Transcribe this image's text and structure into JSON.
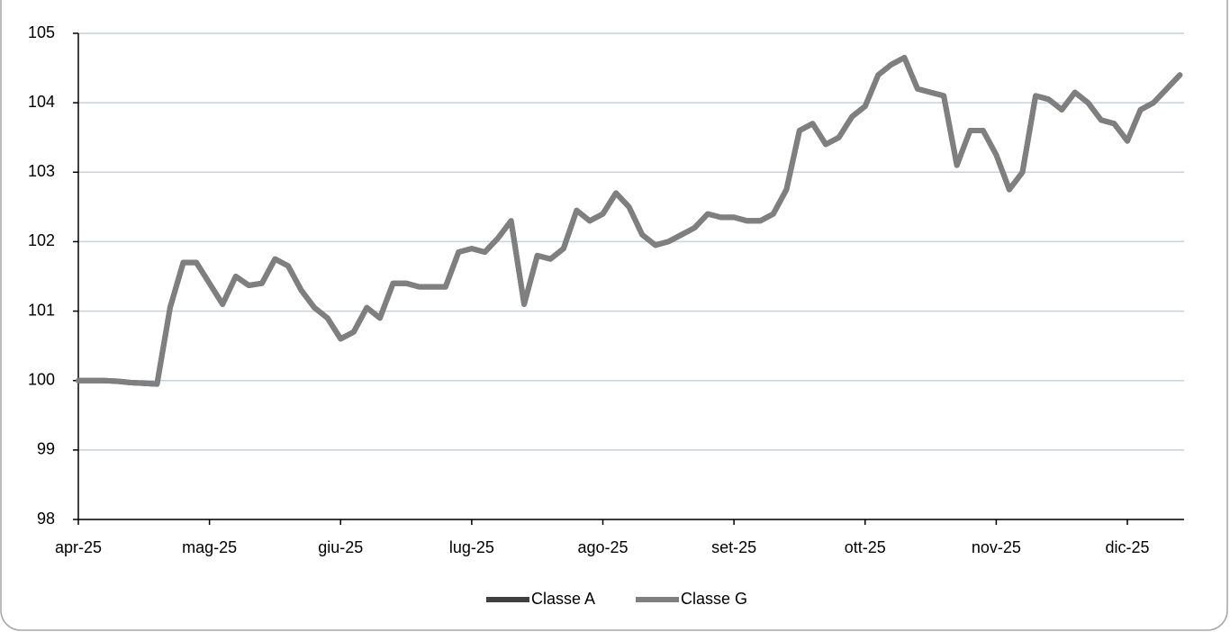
{
  "chart_data": {
    "type": "line",
    "categories": [
      "apr-25",
      null,
      null,
      null,
      null,
      null,
      null,
      null,
      null,
      null,
      "mag-25",
      null,
      null,
      null,
      null,
      null,
      null,
      null,
      null,
      null,
      "giu-25",
      null,
      null,
      null,
      null,
      null,
      null,
      null,
      null,
      null,
      "lug-25",
      null,
      null,
      null,
      null,
      null,
      null,
      null,
      null,
      null,
      "ago-25",
      null,
      null,
      null,
      null,
      null,
      null,
      null,
      null,
      null,
      "set-25",
      null,
      null,
      null,
      null,
      null,
      null,
      null,
      null,
      null,
      "ott-25",
      null,
      null,
      null,
      null,
      null,
      null,
      null,
      null,
      null,
      "nov-25",
      null,
      null,
      null,
      null,
      null,
      null,
      null,
      null,
      null,
      "dic-25",
      null,
      null,
      null,
      null
    ],
    "series": [
      {
        "name": "Classe A",
        "color": "#404040",
        "values": [
          100,
          100,
          100,
          99.99,
          99.97,
          99.96,
          99.95,
          101.05,
          101.7,
          101.7,
          101.4,
          101.1,
          101.5,
          101.37,
          101.4,
          101.75,
          101.65,
          101.3,
          101.05,
          100.9,
          100.6,
          100.7,
          101.05,
          100.9,
          101.4,
          101.4,
          101.35,
          101.35,
          101.35,
          101.85,
          101.9,
          101.85,
          102.05,
          102.3,
          101.1,
          101.8,
          101.75,
          101.9,
          102.45,
          102.3,
          102.4,
          102.7,
          102.5,
          102.1,
          101.95,
          102.0,
          102.1,
          102.2,
          102.4,
          102.35,
          102.35,
          102.3,
          102.3,
          102.4,
          102.75,
          103.6,
          103.7,
          103.4,
          103.5,
          103.8,
          103.95,
          104.4,
          104.55,
          104.65,
          104.2,
          104.15,
          104.1,
          103.1,
          103.6,
          103.6,
          103.25,
          102.75,
          103.0,
          104.1,
          104.05,
          103.9,
          104.15,
          104.0,
          103.75,
          103.7,
          103.45,
          103.9,
          104.0,
          104.2,
          104.4
        ]
      },
      {
        "name": "Classe G",
        "color": "#7f7f7f",
        "values": [
          100,
          100,
          100,
          99.99,
          99.97,
          99.96,
          99.95,
          101.05,
          101.7,
          101.7,
          101.4,
          101.1,
          101.5,
          101.37,
          101.4,
          101.75,
          101.65,
          101.3,
          101.05,
          100.9,
          100.6,
          100.7,
          101.05,
          100.9,
          101.4,
          101.4,
          101.35,
          101.35,
          101.35,
          101.85,
          101.9,
          101.85,
          102.05,
          102.3,
          101.1,
          101.8,
          101.75,
          101.9,
          102.45,
          102.3,
          102.4,
          102.7,
          102.5,
          102.1,
          101.95,
          102.0,
          102.1,
          102.2,
          102.4,
          102.35,
          102.35,
          102.3,
          102.3,
          102.4,
          102.75,
          103.6,
          103.7,
          103.4,
          103.5,
          103.8,
          103.95,
          104.4,
          104.55,
          104.65,
          104.2,
          104.15,
          104.1,
          103.1,
          103.6,
          103.6,
          103.25,
          102.75,
          103.0,
          104.1,
          104.05,
          103.9,
          104.15,
          104.0,
          103.75,
          103.7,
          103.45,
          103.9,
          104.0,
          104.2,
          104.4
        ]
      }
    ],
    "ylim": [
      98,
      105
    ],
    "yticks": [
      98,
      99,
      100,
      101,
      102,
      103,
      104,
      105
    ],
    "grid": true,
    "legend": "bottom"
  }
}
